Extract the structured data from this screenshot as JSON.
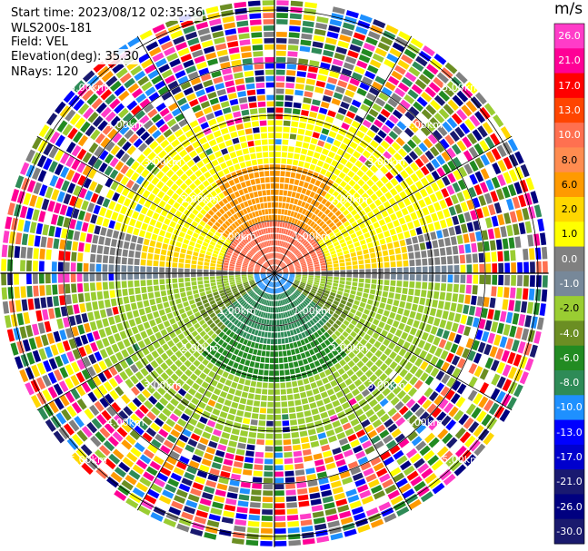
{
  "header": {
    "start_time": "Start time: 2023/08/12 02:35:36",
    "instrument": "WLS200s-181",
    "field": "Field: VEL",
    "elevation": "Elevation(deg): 35.30",
    "nrays": "NRays: 120"
  },
  "chart_data": {
    "type": "heatmap",
    "projection": "polar-ppi",
    "field": "VEL",
    "n_rays": 120,
    "elevation_deg": 35.3,
    "range_rings_km": [
      1.0,
      2.0,
      3.0,
      4.0,
      5.0
    ],
    "range_ring_labels": [
      "1.00km",
      "2.00km",
      "3.00km",
      "4.00km",
      "5.00km"
    ],
    "max_range_km": 5.2,
    "spokes_deg": [
      0,
      30,
      60,
      90,
      120,
      150,
      180,
      210,
      240,
      270,
      300,
      330
    ],
    "colorbar": {
      "unit": "m/s",
      "labels": [
        "26.0",
        "21.0",
        "17.0",
        "13.0",
        "10.0",
        "8.0",
        "6.0",
        "2.0",
        "1.0",
        "0.0",
        "-1.0",
        "-2.0",
        "-4.0",
        "-6.0",
        "-8.0",
        "-10.0",
        "-13.0",
        "-17.0",
        "-21.0",
        "-26.0",
        "-30.0"
      ],
      "colors": [
        "#ff3cc8",
        "#ff0096",
        "#ff0000",
        "#ff4500",
        "#ff7050",
        "#ff8c50",
        "#ff9a00",
        "#ffd700",
        "#ffff00",
        "#808080",
        "#778899",
        "#9acd32",
        "#6b8e23",
        "#228b22",
        "#2e8b57",
        "#1e90ff",
        "#0000ff",
        "#0000cd",
        "#191970",
        "#000080",
        "#1a1a6e"
      ]
    }
  }
}
